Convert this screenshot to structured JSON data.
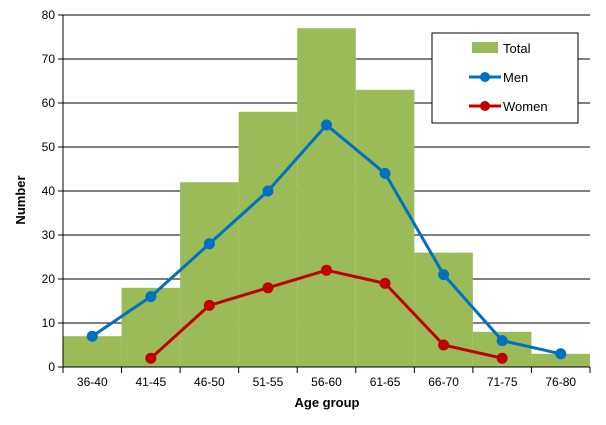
{
  "chart_data": {
    "type": "bar",
    "categories": [
      "36-40",
      "41-45",
      "46-50",
      "51-55",
      "56-60",
      "61-65",
      "66-70",
      "71-75",
      "76-80"
    ],
    "series": [
      {
        "name": "Total",
        "type": "bar",
        "color": "#9bbb59",
        "values": [
          7,
          18,
          42,
          58,
          77,
          63,
          26,
          8,
          3
        ]
      },
      {
        "name": "Men",
        "type": "line",
        "color": "#0070c0",
        "values": [
          7,
          16,
          28,
          40,
          55,
          44,
          21,
          6,
          3
        ]
      },
      {
        "name": "Women",
        "type": "line",
        "color": "#c00000",
        "values": [
          null,
          2,
          14,
          18,
          22,
          19,
          5,
          2,
          null
        ]
      }
    ],
    "xlabel": "Age group",
    "ylabel": "Number",
    "ylim": [
      0,
      80
    ],
    "yticks": [
      0,
      10,
      20,
      30,
      40,
      50,
      60,
      70,
      80
    ],
    "grid": true,
    "legend_position": "top-right"
  }
}
